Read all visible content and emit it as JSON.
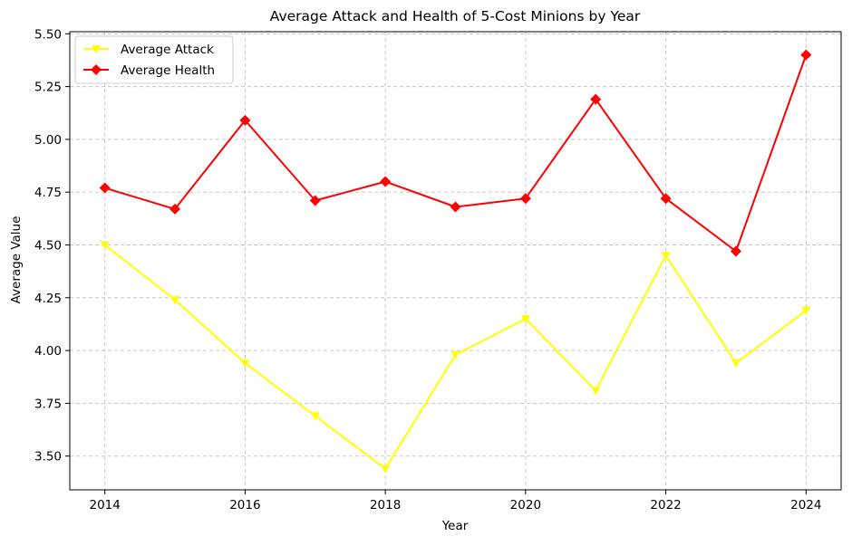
{
  "chart_data": {
    "type": "line",
    "title": "Average Attack and Health of 5-Cost Minions by Year",
    "xlabel": "Year",
    "ylabel": "Average Value",
    "x": [
      2014,
      2015,
      2016,
      2017,
      2018,
      2019,
      2020,
      2021,
      2022,
      2023,
      2024
    ],
    "xticks": [
      2014,
      2016,
      2018,
      2020,
      2022,
      2024
    ],
    "yticks": [
      3.5,
      3.75,
      4.0,
      4.25,
      4.5,
      4.75,
      5.0,
      5.25,
      5.5
    ],
    "xlim": [
      2013.5,
      2024.5
    ],
    "ylim": [
      3.34,
      5.51
    ],
    "grid": true,
    "legend_position": "top-left",
    "series": [
      {
        "name": "Average Attack",
        "color": "#ffff00",
        "marker": "triangle-down",
        "values": [
          4.5,
          4.24,
          3.94,
          3.69,
          3.44,
          3.98,
          4.15,
          3.81,
          4.45,
          3.94,
          4.19
        ]
      },
      {
        "name": "Average Health",
        "color": "#ff0000",
        "marker": "diamond",
        "values": [
          4.77,
          4.67,
          5.09,
          4.71,
          4.8,
          4.68,
          4.72,
          5.19,
          4.72,
          4.47,
          5.4
        ]
      }
    ]
  }
}
